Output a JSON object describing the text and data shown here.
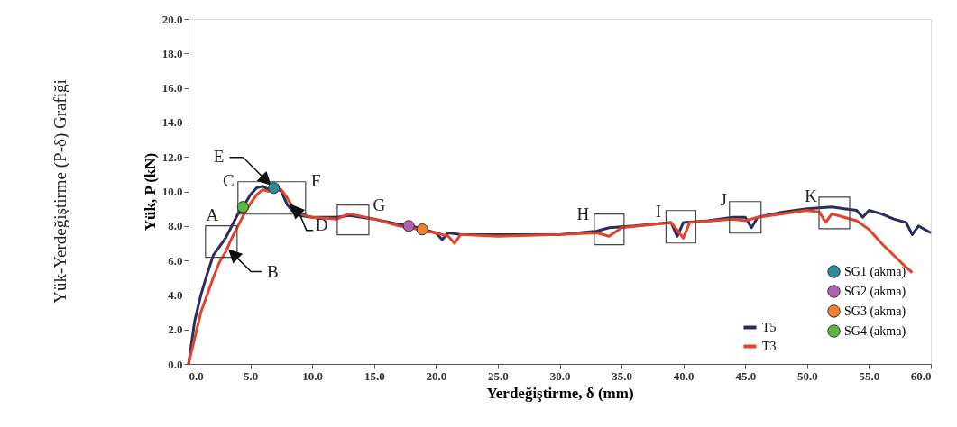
{
  "chart_data": {
    "type": "line",
    "title": "Yük-Yerdeğiştirme (P-δ) Grafiği",
    "xlabel": "Yerdeğiştirme, δ (mm)",
    "ylabel": "Yük, P (kN)",
    "xlim": [
      0,
      60
    ],
    "xticks": [
      {
        "value": 0,
        "label": "0.0"
      },
      {
        "value": 5,
        "label": "5.0"
      },
      {
        "value": 10,
        "label": "10.0"
      },
      {
        "value": 15,
        "label": "15.0"
      },
      {
        "value": 20,
        "label": "20.0"
      },
      {
        "value": 25,
        "label": "25.0"
      },
      {
        "value": 30,
        "label": "30.0"
      },
      {
        "value": 35,
        "label": "35.0"
      },
      {
        "value": 40,
        "label": "40.0"
      },
      {
        "value": 45,
        "label": "45.0"
      },
      {
        "value": 50,
        "label": "50.0"
      },
      {
        "value": 55,
        "label": "55.0"
      },
      {
        "value": 60,
        "label": "60.0"
      }
    ],
    "ylim": [
      0,
      20
    ],
    "yticks": [
      {
        "value": 0,
        "label": "0.0"
      },
      {
        "value": 2,
        "label": "2.0"
      },
      {
        "value": 4,
        "label": "4.0"
      },
      {
        "value": 6,
        "label": "6.0"
      },
      {
        "value": 8,
        "label": "8.0"
      },
      {
        "value": 10,
        "label": "10.0"
      },
      {
        "value": 12,
        "label": "12.0"
      },
      {
        "value": 14,
        "label": "14.0"
      },
      {
        "value": 16,
        "label": "16.0"
      },
      {
        "value": 18,
        "label": "18.0"
      },
      {
        "value": 20,
        "label": "20.0"
      }
    ],
    "grid": false,
    "legend": "bottom right",
    "series": [
      {
        "name": "T5",
        "color": "#2b2d5e",
        "x": [
          0,
          0.5,
          1,
          1.5,
          2,
          2.5,
          3,
          3.5,
          4,
          4.5,
          5,
          5.5,
          6,
          6.5,
          7,
          7.5,
          8,
          8.5,
          9,
          10,
          12,
          13,
          15,
          17,
          18,
          19,
          20,
          20.5,
          21,
          22,
          25,
          30,
          33,
          34,
          36,
          39,
          39.5,
          40,
          42,
          44,
          45,
          45.5,
          46,
          48,
          50,
          52,
          53,
          54,
          54.5,
          55,
          56,
          57,
          58,
          58.5,
          59,
          60
        ],
        "values": [
          0,
          2.5,
          4,
          5.2,
          6.3,
          6.8,
          7.3,
          8,
          8.7,
          9.2,
          9.8,
          10.2,
          10.3,
          10.1,
          10.3,
          10,
          9.2,
          8.8,
          8.6,
          8.5,
          8.5,
          8.6,
          8.4,
          8.1,
          8,
          7.8,
          7.6,
          7.2,
          7.6,
          7.5,
          7.5,
          7.5,
          7.7,
          7.9,
          8,
          8.2,
          7.4,
          8.2,
          8.3,
          8.5,
          8.5,
          7.9,
          8.5,
          8.8,
          9,
          9.1,
          9,
          8.9,
          8.5,
          8.9,
          8.7,
          8.4,
          8.2,
          7.5,
          8,
          7.6
        ]
      },
      {
        "name": "T3",
        "color": "#e0442a",
        "x": [
          0,
          0.5,
          1,
          1.5,
          2,
          2.5,
          3,
          3.5,
          4,
          4.5,
          5,
          5.5,
          6,
          6.5,
          7,
          7.5,
          8,
          8.5,
          9,
          10,
          12,
          13,
          15,
          17,
          18,
          19,
          20,
          21,
          21.5,
          22,
          25,
          30,
          33,
          34,
          35,
          39,
          40,
          40.5,
          44,
          45,
          46,
          50,
          51,
          51.5,
          52,
          53,
          54,
          55,
          56,
          57,
          58,
          58.5
        ],
        "values": [
          0,
          1.5,
          3,
          4,
          5,
          5.9,
          6.5,
          7.3,
          8,
          8.7,
          9.3,
          9.8,
          10.1,
          10,
          10.2,
          10.1,
          9.6,
          9,
          8.7,
          8.5,
          8.4,
          8.7,
          8.4,
          8,
          7.9,
          7.7,
          7.6,
          7.4,
          7,
          7.5,
          7.4,
          7.5,
          7.6,
          7.4,
          7.9,
          8.2,
          7.3,
          8.2,
          8.4,
          8.3,
          8.5,
          8.9,
          8.8,
          8.2,
          8.7,
          8.5,
          8.3,
          7.8,
          7,
          6.3,
          5.6,
          5.3
        ]
      },
      {
        "name": "SG1 (akma)",
        "type": "scatter",
        "marker": "circle",
        "color": "#2e8b9a",
        "x": [
          6.9
        ],
        "values": [
          10.2
        ]
      },
      {
        "name": "SG2 (akma)",
        "type": "scatter",
        "marker": "circle",
        "color": "#b05fb5",
        "x": [
          17.8
        ],
        "values": [
          8.0
        ]
      },
      {
        "name": "SG3 (akma)",
        "type": "scatter",
        "marker": "circle",
        "color": "#f08030",
        "x": [
          18.9
        ],
        "values": [
          7.8
        ]
      },
      {
        "name": "SG4 (akma)",
        "type": "scatter",
        "marker": "circle",
        "color": "#5cb840",
        "x": [
          4.4
        ],
        "values": [
          9.1
        ]
      }
    ],
    "annotations": [
      {
        "text": "A",
        "x": 2.65,
        "y": 7.1
      },
      {
        "text": "B",
        "x": 3.3,
        "y": 6.6
      },
      {
        "text": "C",
        "x": 6,
        "y": 10.3
      },
      {
        "text": "D",
        "x": 8,
        "y": 9.6
      },
      {
        "text": "E",
        "x": 6.6,
        "y": 10.4
      },
      "F",
      {
        "text": "G",
        "x": 13.3,
        "y": 8.35
      },
      {
        "text": "H",
        "x": 34,
        "y": 7.8
      },
      {
        "text": "I",
        "x": 39.8,
        "y": 7.95
      },
      {
        "text": "J",
        "x": 45,
        "y": 8.5
      },
      {
        "text": "K",
        "x": 52.2,
        "y": 8.75
      }
    ]
  }
}
